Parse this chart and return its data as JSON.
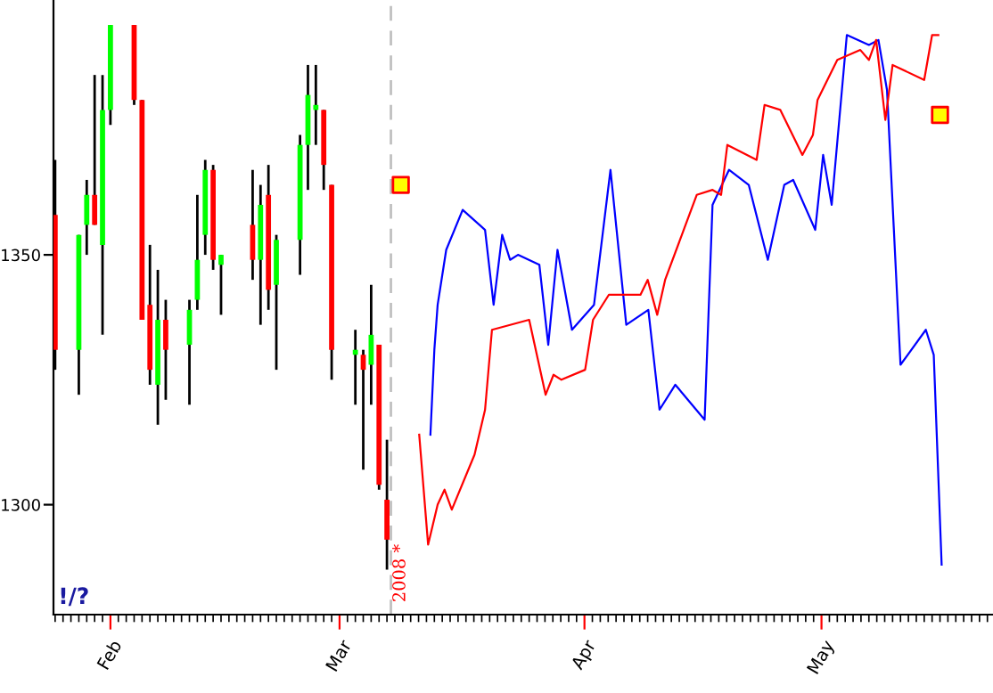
{
  "chart_data": {
    "type": "candlestick",
    "x": [
      "2008-01-25",
      "2008-01-28",
      "2008-01-29",
      "2008-01-30",
      "2008-01-31",
      "2008-02-01",
      "2008-02-04",
      "2008-02-05",
      "2008-02-06",
      "2008-02-07",
      "2008-02-08",
      "2008-02-11",
      "2008-02-12",
      "2008-02-13",
      "2008-02-14",
      "2008-02-15",
      "2008-02-19",
      "2008-02-20",
      "2008-02-21",
      "2008-02-22",
      "2008-02-25",
      "2008-02-26",
      "2008-02-27",
      "2008-02-28",
      "2008-02-29",
      "2008-03-03",
      "2008-03-04",
      "2008-03-05",
      "2008-03-06",
      "2008-03-07"
    ],
    "ohlc": [
      [
        1358,
        1369,
        1327,
        1331
      ],
      [
        1331,
        1354,
        1322,
        1354
      ],
      [
        1356,
        1365,
        1350,
        1362
      ],
      [
        1362,
        1386,
        1356,
        1356
      ],
      [
        1352,
        1386,
        1334,
        1379
      ],
      [
        1379,
        1396,
        1376,
        1396
      ],
      [
        1396,
        1396,
        1380,
        1381
      ],
      [
        1381,
        1381,
        1337,
        1337
      ],
      [
        1340,
        1352,
        1324,
        1327
      ],
      [
        1324,
        1347,
        1316,
        1337
      ],
      [
        1337,
        1341,
        1321,
        1331
      ],
      [
        1332,
        1341,
        1320,
        1339
      ],
      [
        1341,
        1362,
        1339,
        1349
      ],
      [
        1354,
        1369,
        1350,
        1367
      ],
      [
        1367,
        1368,
        1347,
        1349
      ],
      [
        1348,
        1350,
        1338,
        1350
      ],
      [
        1356,
        1367,
        1345,
        1349
      ],
      [
        1349,
        1364,
        1336,
        1360
      ],
      [
        1362,
        1368,
        1339,
        1343
      ],
      [
        1344,
        1354,
        1327,
        1353
      ],
      [
        1353,
        1374,
        1346,
        1372
      ],
      [
        1372,
        1388,
        1363,
        1382
      ],
      [
        1379,
        1388,
        1372,
        1380
      ],
      [
        1379,
        1379,
        1363,
        1368
      ],
      [
        1364,
        1364,
        1325,
        1331
      ],
      [
        1330,
        1335,
        1320,
        1331
      ],
      [
        1330,
        1331,
        1307,
        1327
      ],
      [
        1328,
        1344,
        1320,
        1334
      ],
      [
        1332,
        1332,
        1303,
        1304
      ],
      [
        1301,
        1313,
        1287,
        1293
      ]
    ],
    "colors": [
      "#ff0000",
      "#00ff00",
      "#00ff00",
      "#ff0000",
      "#00ff00",
      "#00ff00",
      "#ff0000",
      "#ff0000",
      "#ff0000",
      "#00ff00",
      "#ff0000",
      "#00ff00",
      "#00ff00",
      "#00ff00",
      "#ff0000",
      "#00ff00",
      "#ff0000",
      "#00ff00",
      "#ff0000",
      "#00ff00",
      "#00ff00",
      "#00ff00",
      "#00ff00",
      "#ff0000",
      "#ff0000",
      "#00ff00",
      "#ff0000",
      "#00ff00",
      "#ff0000",
      "#ff0000"
    ],
    "series": [
      {
        "type": "line",
        "color": "#0000ff",
        "x": [
          "2008-03-12T12:00",
          "2008-03-13T00:00",
          "2008-03-13T10:00",
          "2008-03-14T12:00",
          "2008-03-16T14:00",
          "2008-03-19T10:00",
          "2008-03-20T12:00",
          "2008-03-21T14:00",
          "2008-03-22T14:00",
          "2008-03-23T14:00",
          "2008-03-26T07:00",
          "2008-03-27T10:00",
          "2008-03-28T14:00",
          "2008-03-30T10:00",
          "2008-04-02T05:00",
          "2008-04-04T07:00",
          "2008-04-06T07:00",
          "2008-04-09T02:00",
          "2008-04-10T12:00",
          "2008-04-12T12:00",
          "2008-04-16T05:00",
          "2008-04-17T05:00",
          "2008-04-19T07:00",
          "2008-04-21T19:00",
          "2008-04-24T05:00",
          "2008-04-26T07:00",
          "2008-04-27T10:00",
          "2008-04-30T05:00",
          "2008-05-01T05:00",
          "2008-05-02T07:00",
          "2008-05-04T05:00",
          "2008-05-07T00:00",
          "2008-05-08T05:00",
          "2008-05-09T07:00",
          "2008-05-11T00:00",
          "2008-05-14T05:00",
          "2008-05-15T05:00",
          "2008-05-16T05:00"
        ],
        "values": [
          1314,
          1331,
          1340,
          1351,
          1359,
          1355,
          1340,
          1354,
          1349,
          1350,
          1348,
          1332,
          1351,
          1335,
          1340,
          1367,
          1336,
          1339,
          1319,
          1324,
          1317,
          1360,
          1367,
          1364,
          1349,
          1364,
          1365,
          1355,
          1370,
          1360,
          1394,
          1392,
          1393,
          1383,
          1328,
          1335,
          1330,
          1288
        ]
      },
      {
        "type": "line",
        "color": "#ff0000",
        "x": [
          "2008-03-11T02:00",
          "2008-03-12T05:00",
          "2008-03-13T10:00",
          "2008-03-14T07:00",
          "2008-03-15T05:00",
          "2008-03-18T02:00",
          "2008-03-19T10:00",
          "2008-03-20T07:00",
          "2008-03-25T00:00",
          "2008-03-27T02:00",
          "2008-03-28T02:00",
          "2008-03-29T02:00",
          "2008-04-01T02:00",
          "2008-04-02T02:00",
          "2008-04-04T02:00",
          "2008-04-08T02:00",
          "2008-04-09T00:00",
          "2008-04-10T05:00",
          "2008-04-11T05:00",
          "2008-04-15T05:00",
          "2008-04-17T05:00",
          "2008-04-18T07:00",
          "2008-04-19T02:00",
          "2008-04-22T19:00",
          "2008-04-23T19:00",
          "2008-04-25T19:00",
          "2008-04-28T14:00",
          "2008-04-29T22:00",
          "2008-04-30T12:00",
          "2008-05-03T00:00",
          "2008-05-05T22:00",
          "2008-05-07T00:00",
          "2008-05-07T22:00",
          "2008-05-09T02:00",
          "2008-05-10T00:00",
          "2008-05-14T00:00",
          "2008-05-15T00:00",
          "2008-05-15T19:00"
        ],
        "values": [
          1314,
          1292,
          1300,
          1303,
          1299,
          1310,
          1319,
          1335,
          1337,
          1322,
          1326,
          1325,
          1327,
          1337,
          1342,
          1342,
          1345,
          1338,
          1345,
          1362,
          1363,
          1362,
          1372,
          1369,
          1380,
          1379,
          1370,
          1374,
          1381,
          1389,
          1391,
          1389,
          1393,
          1377,
          1388,
          1385,
          1394,
          1394
        ]
      },
      {
        "type": "scatter",
        "color": "#ffff00",
        "marker": "square",
        "x": [
          "2008-03-08T18:00",
          "2008-05-16T00:00"
        ],
        "values": [
          1364,
          1378
        ]
      }
    ],
    "xlim": [
      "2008-01-24T19:00",
      "2008-05-22T17:00"
    ],
    "xticks": [
      {
        "value": "2008-02-01",
        "label": "Feb"
      },
      {
        "value": "2008-03-01",
        "label": "Mar"
      },
      {
        "value": "2008-04-01",
        "label": "Apr"
      },
      {
        "value": "2008-05-01",
        "label": "May"
      }
    ],
    "ylim": [
      1278,
      1401
    ],
    "yticks": [
      1300,
      1350
    ],
    "ref_lines": [
      {
        "axis": "x",
        "value": "2008-03-07T12:00",
        "label": "2008 *",
        "color": "#c0c0c0",
        "line_style": "dashed"
      }
    ],
    "annotations": [
      "!/?"
    ],
    "grid": false,
    "legend": false
  }
}
